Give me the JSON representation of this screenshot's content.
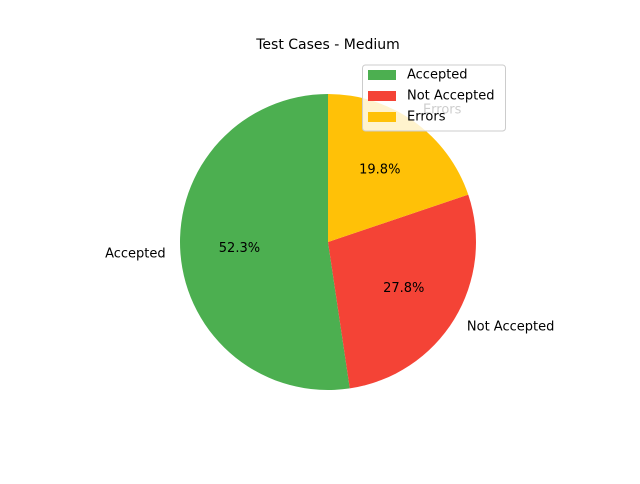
{
  "chart_data": {
    "type": "pie",
    "title": "Test Cases - Medium",
    "categories": [
      "Accepted",
      "Not Accepted",
      "Errors"
    ],
    "values": [
      52.3,
      27.8,
      19.8
    ],
    "autopct_labels": [
      "52.3%",
      "27.8%",
      "19.8%"
    ],
    "colors": [
      "#4caf50",
      "#f44336",
      "#ffc107"
    ],
    "start_angle_deg": 90,
    "direction": "counterclockwise",
    "legend": {
      "placement": "upper-right",
      "entries": [
        "Accepted",
        "Not Accepted",
        "Errors"
      ]
    }
  }
}
